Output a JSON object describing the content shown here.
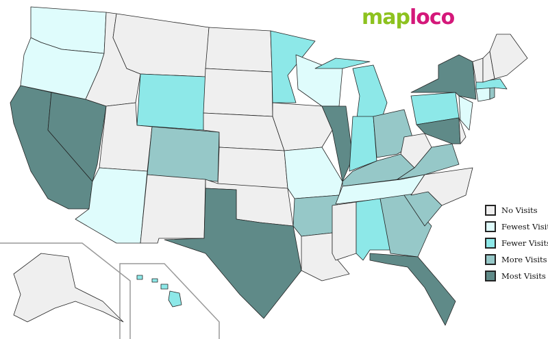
{
  "logo": {
    "part1": "map",
    "part2": "loco"
  },
  "categories": {
    "none": {
      "label": "No Visits",
      "color": "#efefef"
    },
    "fewest": {
      "label": "Fewest Visits",
      "color": "#dffcfc"
    },
    "fewer": {
      "label": "Fewer Visits",
      "color": "#8de8e8"
    },
    "more": {
      "label": "More Visits",
      "color": "#96c8c8"
    },
    "most": {
      "label": "Most Visits",
      "color": "#5f8a88"
    }
  },
  "legend_order": [
    "none",
    "fewest",
    "fewer",
    "more",
    "most"
  ],
  "states": {
    "WA": "fewest",
    "OR": "fewest",
    "CA": "most",
    "NV": "most",
    "ID": "none",
    "MT": "none",
    "WY": "fewer",
    "UT": "none",
    "AZ": "fewest",
    "CO": "more",
    "NM": "none",
    "ND": "none",
    "SD": "none",
    "NE": "none",
    "KS": "none",
    "OK": "none",
    "TX": "most",
    "MN": "fewer",
    "IA": "none",
    "MO": "fewest",
    "AR": "more",
    "LA": "none",
    "WI": "fewest",
    "IL": "most",
    "MI": "fewer",
    "IN": "fewer",
    "OH": "more",
    "KY": "more",
    "TN": "fewest",
    "MS": "none",
    "AL": "fewer",
    "GA": "more",
    "FL": "most",
    "SC": "more",
    "NC": "none",
    "VA": "more",
    "WV": "none",
    "PA": "fewer",
    "NY": "most",
    "MD": "most",
    "DE": "none",
    "NJ": "fewest",
    "CT": "fewest",
    "RI": "more",
    "MA": "fewer",
    "VT": "none",
    "NH": "none",
    "ME": "none",
    "AK": "none",
    "HI": "fewer"
  }
}
